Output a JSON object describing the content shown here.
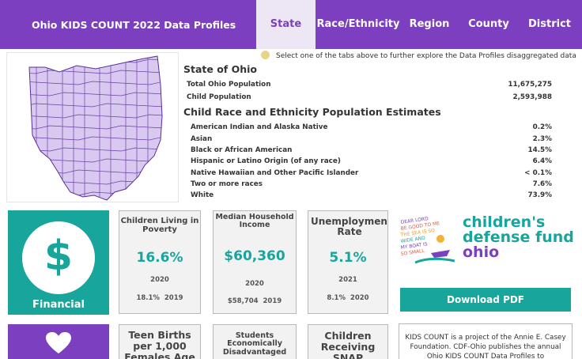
{
  "nav": {
    "brand": "Ohio KIDS COUNT 2022 Data Profiles",
    "tabs": [
      {
        "label": "State",
        "active": true
      },
      {
        "label": "Race/Ethnicity",
        "active": false
      },
      {
        "label": "Region",
        "active": false
      },
      {
        "label": "County",
        "active": false
      },
      {
        "label": "District",
        "active": false
      }
    ]
  },
  "hint": {
    "icon": "lightbulb-icon",
    "text": "Select one of the tabs above to further explore the Data Profiles disaggregated data"
  },
  "state": {
    "heading": "State of Ohio",
    "total_population_label": "Total Ohio Population",
    "total_population_value": "11,675,275",
    "child_population_label": "Child Population",
    "child_population_value": "2,593,988"
  },
  "race": {
    "heading": "Child Race and Ethnicity Population Estimates",
    "rows": [
      {
        "label": "American Indian and Alaska Native",
        "value": "0.2%"
      },
      {
        "label": "Asian",
        "value": "2.3%"
      },
      {
        "label": "Black or African American",
        "value": "14.5%"
      },
      {
        "label": "Hispanic or Latino Origin (of any race)",
        "value": "6.4%"
      },
      {
        "label": "Native Hawaiian and Other Pacific Islander",
        "value": "< 0.1%"
      },
      {
        "label": "Two or more races",
        "value": "7.6%"
      },
      {
        "label": "White",
        "value": "73.9%"
      }
    ]
  },
  "financial": {
    "label": "Financial",
    "icon": "dollar-icon",
    "color": "#17a59c",
    "cards": [
      {
        "title": "Children Living in Poverty",
        "value": "16.6%",
        "year": "2020",
        "prev_value": "18.1%",
        "prev_year": "2019"
      },
      {
        "title": "Median Household Income",
        "value": "$60,360",
        "year": "2020",
        "prev_value": "$58,704",
        "prev_year": "2019"
      },
      {
        "title": "Unemployment Rate",
        "value": "5.1%",
        "year": "2021",
        "prev_value": "8.1%",
        "prev_year": "2020"
      }
    ]
  },
  "health": {
    "icon": "heart-icon",
    "color": "#7b3fbf",
    "cards": [
      {
        "title": "Teen Births per 1,000 Females Age"
      },
      {
        "title": "Students Economically Disadvantaged"
      },
      {
        "title": "Children Receiving SNAP"
      }
    ]
  },
  "logo": {
    "line1": "children's",
    "line2": "defense fund",
    "line3": "ohio",
    "drawing_text": "DEAR LORD BE GOOD TO ME THE SEA IS SO WIDE AND MY BOAT IS SO SMALL"
  },
  "download_label": "Download PDF",
  "about_text": "KIDS COUNT is a project of the Annie E. Casey Foundation. CDF-Ohio publishes the annual Ohio KIDS COUNT Data Profiles to",
  "colors": {
    "purple": "#7b3fbf",
    "teal": "#17a59c",
    "light_purple": "#ece6f5"
  }
}
